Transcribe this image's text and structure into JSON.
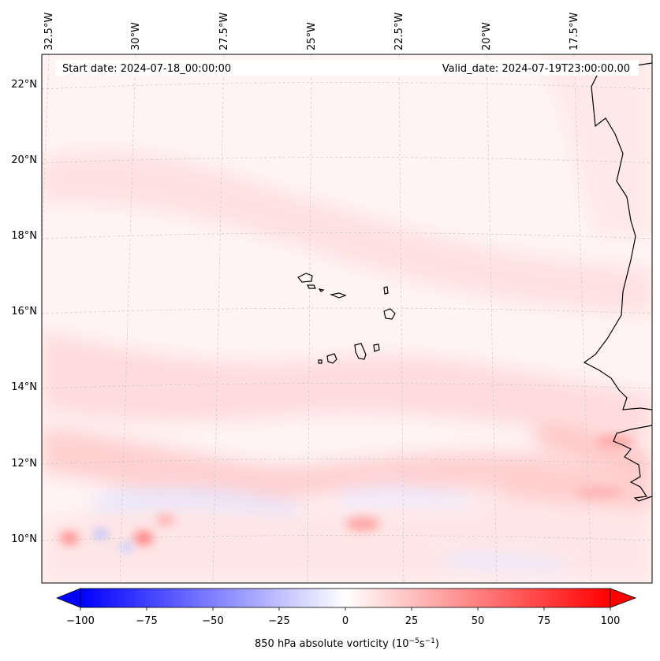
{
  "banner": {
    "start_date": "Start date: 2024-07-18_00:00:00",
    "valid_date": "Valid_date: 2024-07-19T23:00:00.00"
  },
  "lon_labels": [
    "32.5°W",
    "30°W",
    "27.5°W",
    "25°W",
    "22.5°W",
    "20°W",
    "17.5°W"
  ],
  "lat_labels": [
    "22°N",
    "20°N",
    "18°N",
    "16°N",
    "14°N",
    "12°N",
    "10°N"
  ],
  "colorbar": {
    "label_main": "850 hPa absolute vorticity (10",
    "label_exp1": "−5",
    "label_mid": "s",
    "label_exp2": "−1",
    "label_end": ")",
    "ticks": [
      "−100",
      "−75",
      "−50",
      "−25",
      "0",
      "25",
      "50",
      "75",
      "100"
    ],
    "vmin": -100,
    "vmax": 100,
    "extend": "both",
    "colors": {
      "min": "#0000ff",
      "mid": "#ffffff",
      "max": "#ff0000"
    }
  },
  "map": {
    "field": "850 hPa absolute vorticity",
    "colormap": "bwr",
    "coastline_color": "#000000",
    "gridlines": "dashed light grey"
  }
}
